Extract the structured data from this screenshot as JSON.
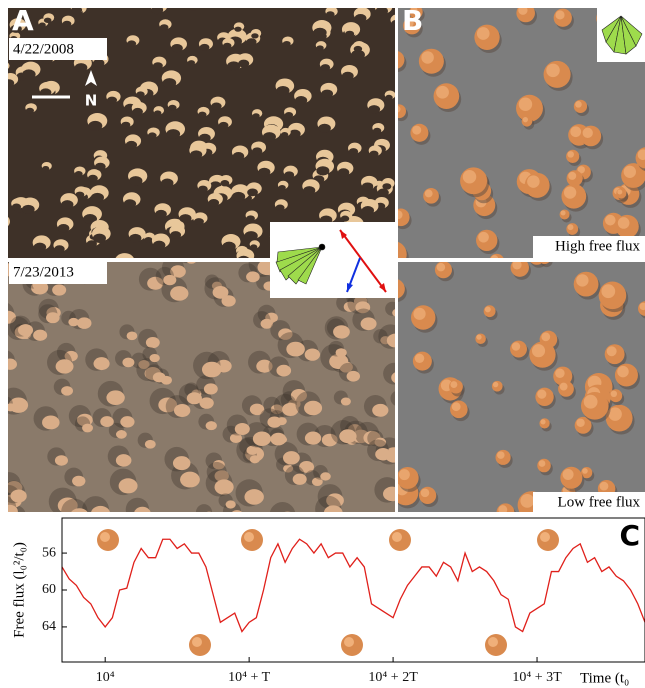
{
  "panels": {
    "a_label": "A",
    "b_label": "B",
    "date_top": "4/22/2008",
    "date_bottom": "7/23/2013",
    "north": "N",
    "high_flux": "High free flux",
    "low_flux": "Low free flux"
  },
  "chart_data": {
    "type": "line",
    "panel_label": "C",
    "ylabel": "Free flux (l₀²/t₀)",
    "xlabel": "Time (t₀",
    "xlim": [
      -0.3,
      3.75
    ],
    "ylim": [
      67.8,
      52.2
    ],
    "yticks": [
      56,
      60,
      64
    ],
    "xticks": [
      {
        "value": 0,
        "label": "10⁴"
      },
      {
        "value": 1,
        "label": "10⁴ + T"
      },
      {
        "value": 2,
        "label": "10⁴ + 2T"
      },
      {
        "value": 3,
        "label": "10⁴ + 3T"
      }
    ],
    "series": [
      {
        "color": "#e0201b",
        "x": [
          -0.3,
          -0.25,
          -0.2,
          -0.15,
          -0.1,
          -0.05,
          0,
          0.05,
          0.1,
          0.15,
          0.2,
          0.25,
          0.3,
          0.35,
          0.4,
          0.45,
          0.5,
          0.55,
          0.6,
          0.65,
          0.7,
          0.75,
          0.8,
          0.85,
          0.9,
          0.95,
          1,
          1.05,
          1.1,
          1.15,
          1.2,
          1.25,
          1.3,
          1.35,
          1.4,
          1.45,
          1.5,
          1.55,
          1.6,
          1.65,
          1.7,
          1.75,
          1.8,
          1.85,
          1.9,
          1.95,
          2,
          2.05,
          2.1,
          2.15,
          2.2,
          2.25,
          2.3,
          2.35,
          2.4,
          2.45,
          2.5,
          2.55,
          2.6,
          2.65,
          2.7,
          2.75,
          2.8,
          2.85,
          2.9,
          2.95,
          3,
          3.05,
          3.1,
          3.15,
          3.2,
          3.25,
          3.3,
          3.35,
          3.4,
          3.45,
          3.5,
          3.55,
          3.6,
          3.65,
          3.7,
          3.75
        ],
        "values": [
          57.5,
          58.8,
          59.5,
          60.8,
          61.5,
          63,
          64,
          63,
          60,
          59.8,
          57,
          55.5,
          56.5,
          56.5,
          54.5,
          54.5,
          55.5,
          55,
          56,
          56,
          57.5,
          60.5,
          63.5,
          63,
          62.5,
          64.5,
          63.5,
          63,
          60,
          56.5,
          55,
          57,
          55.5,
          54.5,
          55,
          56,
          55,
          56.5,
          56,
          56,
          57.5,
          56.5,
          57.5,
          61.5,
          62,
          62.5,
          63,
          61,
          59.5,
          58.5,
          57.5,
          57.5,
          58.5,
          57,
          57.5,
          59,
          56,
          58,
          57.5,
          58,
          59,
          60.5,
          61,
          64,
          64.5,
          62.5,
          62,
          61.5,
          58,
          58,
          56.5,
          55.5,
          55,
          57,
          56.5,
          58,
          57.5,
          58.5,
          59,
          60,
          61.5,
          63.5
        ]
      }
    ]
  }
}
